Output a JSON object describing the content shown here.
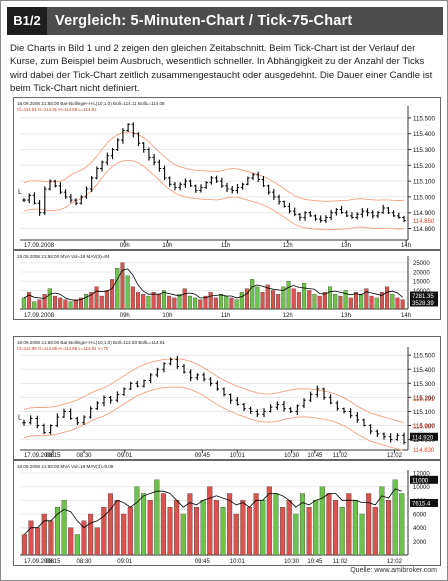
{
  "header": {
    "badge": "B1/2",
    "title": "Vergleich: 5-Minuten-Chart / Tick-75-Chart"
  },
  "intro_text": "Die Charts in Bild 1 und 2 zeigen den gleichen Zeitabschnitt. Beim Tick-Chart ist der Verlauf der Kurse, zum Beispiel beim Ausbruch, wesentlich schneller. In Abhängigkeit zu der Anzahl der Ticks wird dabei der Tick-Chart zeitlich zusammengestaucht oder ausgedehnt. Die Dauer einer Candle ist beim Tick-Chart nicht definiert.",
  "credit": "Quelle: www.amibroker.com",
  "colors": {
    "header_bg": "#4d4d4d",
    "badge_bg": "#1e1e1e",
    "up_volume": "#6cc24a",
    "down_volume": "#d9534f",
    "envelope": "#f4a080",
    "price_bars": "#000000",
    "current_price_label": "#e64020"
  },
  "chart_data": [
    {
      "type": "ohlc",
      "info_line": "18.09.2008 21:58:00  Bar-Bollinger-H-L(10,1.0)  Boll=114.11  BollL=114.08",
      "info_line2": "Cl=114.81  O=114.81  H=114.86  L=114.81",
      "x_tick_labels": [
        "17.09.2008",
        "09h",
        "10h",
        "11h",
        "12h",
        "13h",
        "14h"
      ],
      "y_tick_labels": [
        "115.500",
        "115.400",
        "115.300",
        "115.200",
        "115.100",
        "115.000",
        "114.900",
        "114.800"
      ],
      "ylim": [
        114.74,
        115.55
      ],
      "price_labels": [
        {
          "text": "114.850",
          "color": "#e64020"
        }
      ],
      "close": [
        114.98,
        115.01,
        114.96,
        114.9,
        115.05,
        115.1,
        115.07,
        115.03,
        115.0,
        114.98,
        114.96,
        115.0,
        115.05,
        115.12,
        115.18,
        115.22,
        115.26,
        115.3,
        115.36,
        115.42,
        115.46,
        115.4,
        115.34,
        115.3,
        115.25,
        115.22,
        115.18,
        115.12,
        115.08,
        115.06,
        115.08,
        115.1,
        115.07,
        115.04,
        115.06,
        115.09,
        115.12,
        115.1,
        115.07,
        115.05,
        115.04,
        115.06,
        115.08,
        115.12,
        115.14,
        115.11,
        115.07,
        115.03,
        115.0,
        114.97,
        114.94,
        114.91,
        114.89,
        114.87,
        114.9,
        114.88,
        114.86,
        114.85,
        114.87,
        114.9,
        114.92,
        114.9,
        114.88,
        114.87,
        114.89,
        114.91,
        114.9,
        114.88,
        114.9,
        114.93,
        114.9,
        114.88,
        114.87,
        114.85
      ]
    },
    {
      "type": "bar",
      "info_line": "18.09.2008 21:58:00  MVA  Vol=18  MAV(3)=84",
      "x_tick_labels": [
        "17.09.2008",
        "09h",
        "10h",
        "11h",
        "12h",
        "13h",
        "14h"
      ],
      "y_tick_labels": [
        "25000",
        "20000",
        "15000",
        "10000",
        "5000"
      ],
      "ylim": [
        0,
        27000
      ],
      "price_labels": [
        {
          "text": "7281.35",
          "color": "#111111"
        },
        {
          "text": "3528.39",
          "color": "#111111"
        }
      ],
      "values": [
        6000,
        9000,
        4000,
        5000,
        8000,
        11000,
        7000,
        6000,
        5000,
        4000,
        5000,
        6000,
        8000,
        9000,
        12000,
        7000,
        10000,
        16000,
        22000,
        25000,
        18000,
        12000,
        9000,
        8000,
        7000,
        9000,
        8000,
        10000,
        7000,
        6000,
        8000,
        11000,
        7000,
        6000,
        5000,
        7000,
        9000,
        6000,
        8000,
        7000,
        6000,
        5000,
        9000,
        11000,
        16000,
        12000,
        9000,
        13000,
        10000,
        8000,
        12000,
        15000,
        11000,
        9000,
        14000,
        10000,
        8000,
        7000,
        9000,
        12000,
        8000,
        7000,
        10000,
        6000,
        9000,
        8000,
        11000,
        7000,
        6000,
        9000,
        12000,
        8000,
        6000,
        5000
      ]
    },
    {
      "type": "ohlc",
      "info_line": "18.09.2008 21:58:00  Bar-Bollinger-H-L(10,1.0)  Boll=114.83  BollL=114.81",
      "info_line2": "Cl=114.85  O=114.85  H=114.86  L=114.81  V=75",
      "x_tick_labels": [
        "17.09.2008",
        "08:15",
        "08:30",
        "09:01",
        "09:45",
        "10:01",
        "10:30",
        "10:45",
        "11:02",
        "12:02"
      ],
      "y_tick_labels": [
        "115.500",
        "115.400",
        "115.300",
        "115.200",
        "115.100",
        "115.000",
        "114.900"
      ],
      "ylim": [
        114.84,
        115.53
      ],
      "price_labels": [
        {
          "text": "115.191",
          "color": "#e64020"
        },
        {
          "text": "114.997",
          "color": "#e64020"
        },
        {
          "text": "114.920",
          "color": "#111111"
        },
        {
          "text": "114.830",
          "color": "#e64020"
        }
      ],
      "close": [
        115.02,
        115.05,
        115.0,
        114.95,
        115.0,
        115.06,
        115.1,
        115.05,
        115.02,
        115.06,
        115.12,
        115.16,
        115.2,
        115.18,
        115.22,
        115.26,
        115.3,
        115.28,
        115.32,
        115.36,
        115.4,
        115.44,
        115.47,
        115.42,
        115.38,
        115.34,
        115.36,
        115.33,
        115.3,
        115.26,
        115.22,
        115.18,
        115.15,
        115.12,
        115.1,
        115.08,
        115.1,
        115.13,
        115.15,
        115.12,
        115.1,
        115.14,
        115.18,
        115.22,
        115.26,
        115.2,
        115.16,
        115.12,
        115.1,
        115.07,
        115.04,
        115.0,
        114.96,
        114.94,
        114.92,
        114.9,
        114.93,
        114.88
      ]
    },
    {
      "type": "bar",
      "info_line": "18.09.2008 21:58:00  MVA  Vol=18  MAV(3)=9.09",
      "x_tick_labels": [
        "17.09.2008",
        "08:15",
        "08:30",
        "09:01",
        "09:45",
        "10:01",
        "10:30",
        "10:45",
        "11:02",
        "12:02"
      ],
      "y_tick_labels": [
        "12000",
        "10000",
        "8000",
        "6000",
        "4000",
        "2000"
      ],
      "ylim": [
        0,
        12000
      ],
      "price_labels": [
        {
          "text": "11000",
          "color": "#111111"
        },
        {
          "text": "7615.4",
          "color": "#111111"
        }
      ],
      "values": [
        3000,
        5000,
        4000,
        6000,
        5000,
        7000,
        8000,
        4000,
        3000,
        5000,
        6000,
        4000,
        7000,
        9000,
        8000,
        6000,
        7000,
        10000,
        9000,
        8000,
        11000,
        9000,
        7000,
        8000,
        6000,
        9000,
        7000,
        8000,
        10000,
        8000,
        7000,
        9000,
        6000,
        8000,
        7000,
        9000,
        8000,
        10000,
        9000,
        7000,
        8000,
        6000,
        9000,
        7000,
        8000,
        10000,
        9000,
        8000,
        7000,
        9000,
        8000,
        6000,
        9000,
        7000,
        10000,
        8000,
        11000,
        9000
      ]
    }
  ]
}
